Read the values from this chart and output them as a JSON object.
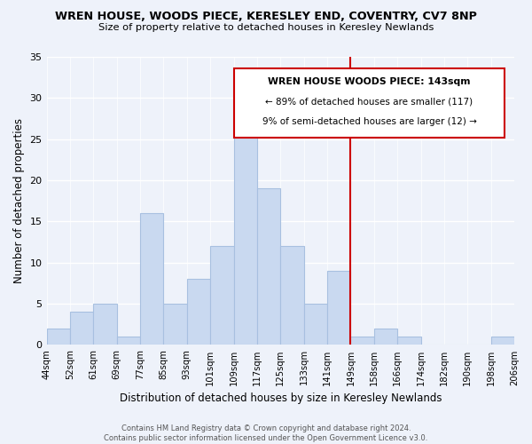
{
  "title": "WREN HOUSE, WOODS PIECE, KERESLEY END, COVENTRY, CV7 8NP",
  "subtitle": "Size of property relative to detached houses in Keresley Newlands",
  "xlabel": "Distribution of detached houses by size in Keresley Newlands",
  "ylabel": "Number of detached properties",
  "bin_labels": [
    "44sqm",
    "52sqm",
    "61sqm",
    "69sqm",
    "77sqm",
    "85sqm",
    "93sqm",
    "101sqm",
    "109sqm",
    "117sqm",
    "125sqm",
    "133sqm",
    "141sqm",
    "149sqm",
    "158sqm",
    "166sqm",
    "174sqm",
    "182sqm",
    "190sqm",
    "198sqm",
    "206sqm"
  ],
  "bar_heights": [
    2,
    4,
    5,
    1,
    16,
    5,
    8,
    12,
    26,
    19,
    12,
    5,
    9,
    1,
    2,
    1,
    0,
    0,
    0,
    1
  ],
  "bar_color": "#c9d9f0",
  "bar_edge_color": "#a8c0e0",
  "vline_pos": 12.5,
  "vline_color": "#cc0000",
  "ylim": [
    0,
    35
  ],
  "yticks": [
    0,
    5,
    10,
    15,
    20,
    25,
    30,
    35
  ],
  "annotation_title": "WREN HOUSE WOODS PIECE: 143sqm",
  "annotation_line1": "← 89% of detached houses are smaller (117)",
  "annotation_line2": "9% of semi-detached houses are larger (12) →",
  "footer1": "Contains HM Land Registry data © Crown copyright and database right 2024.",
  "footer2": "Contains public sector information licensed under the Open Government Licence v3.0.",
  "background_color": "#eef2fa"
}
